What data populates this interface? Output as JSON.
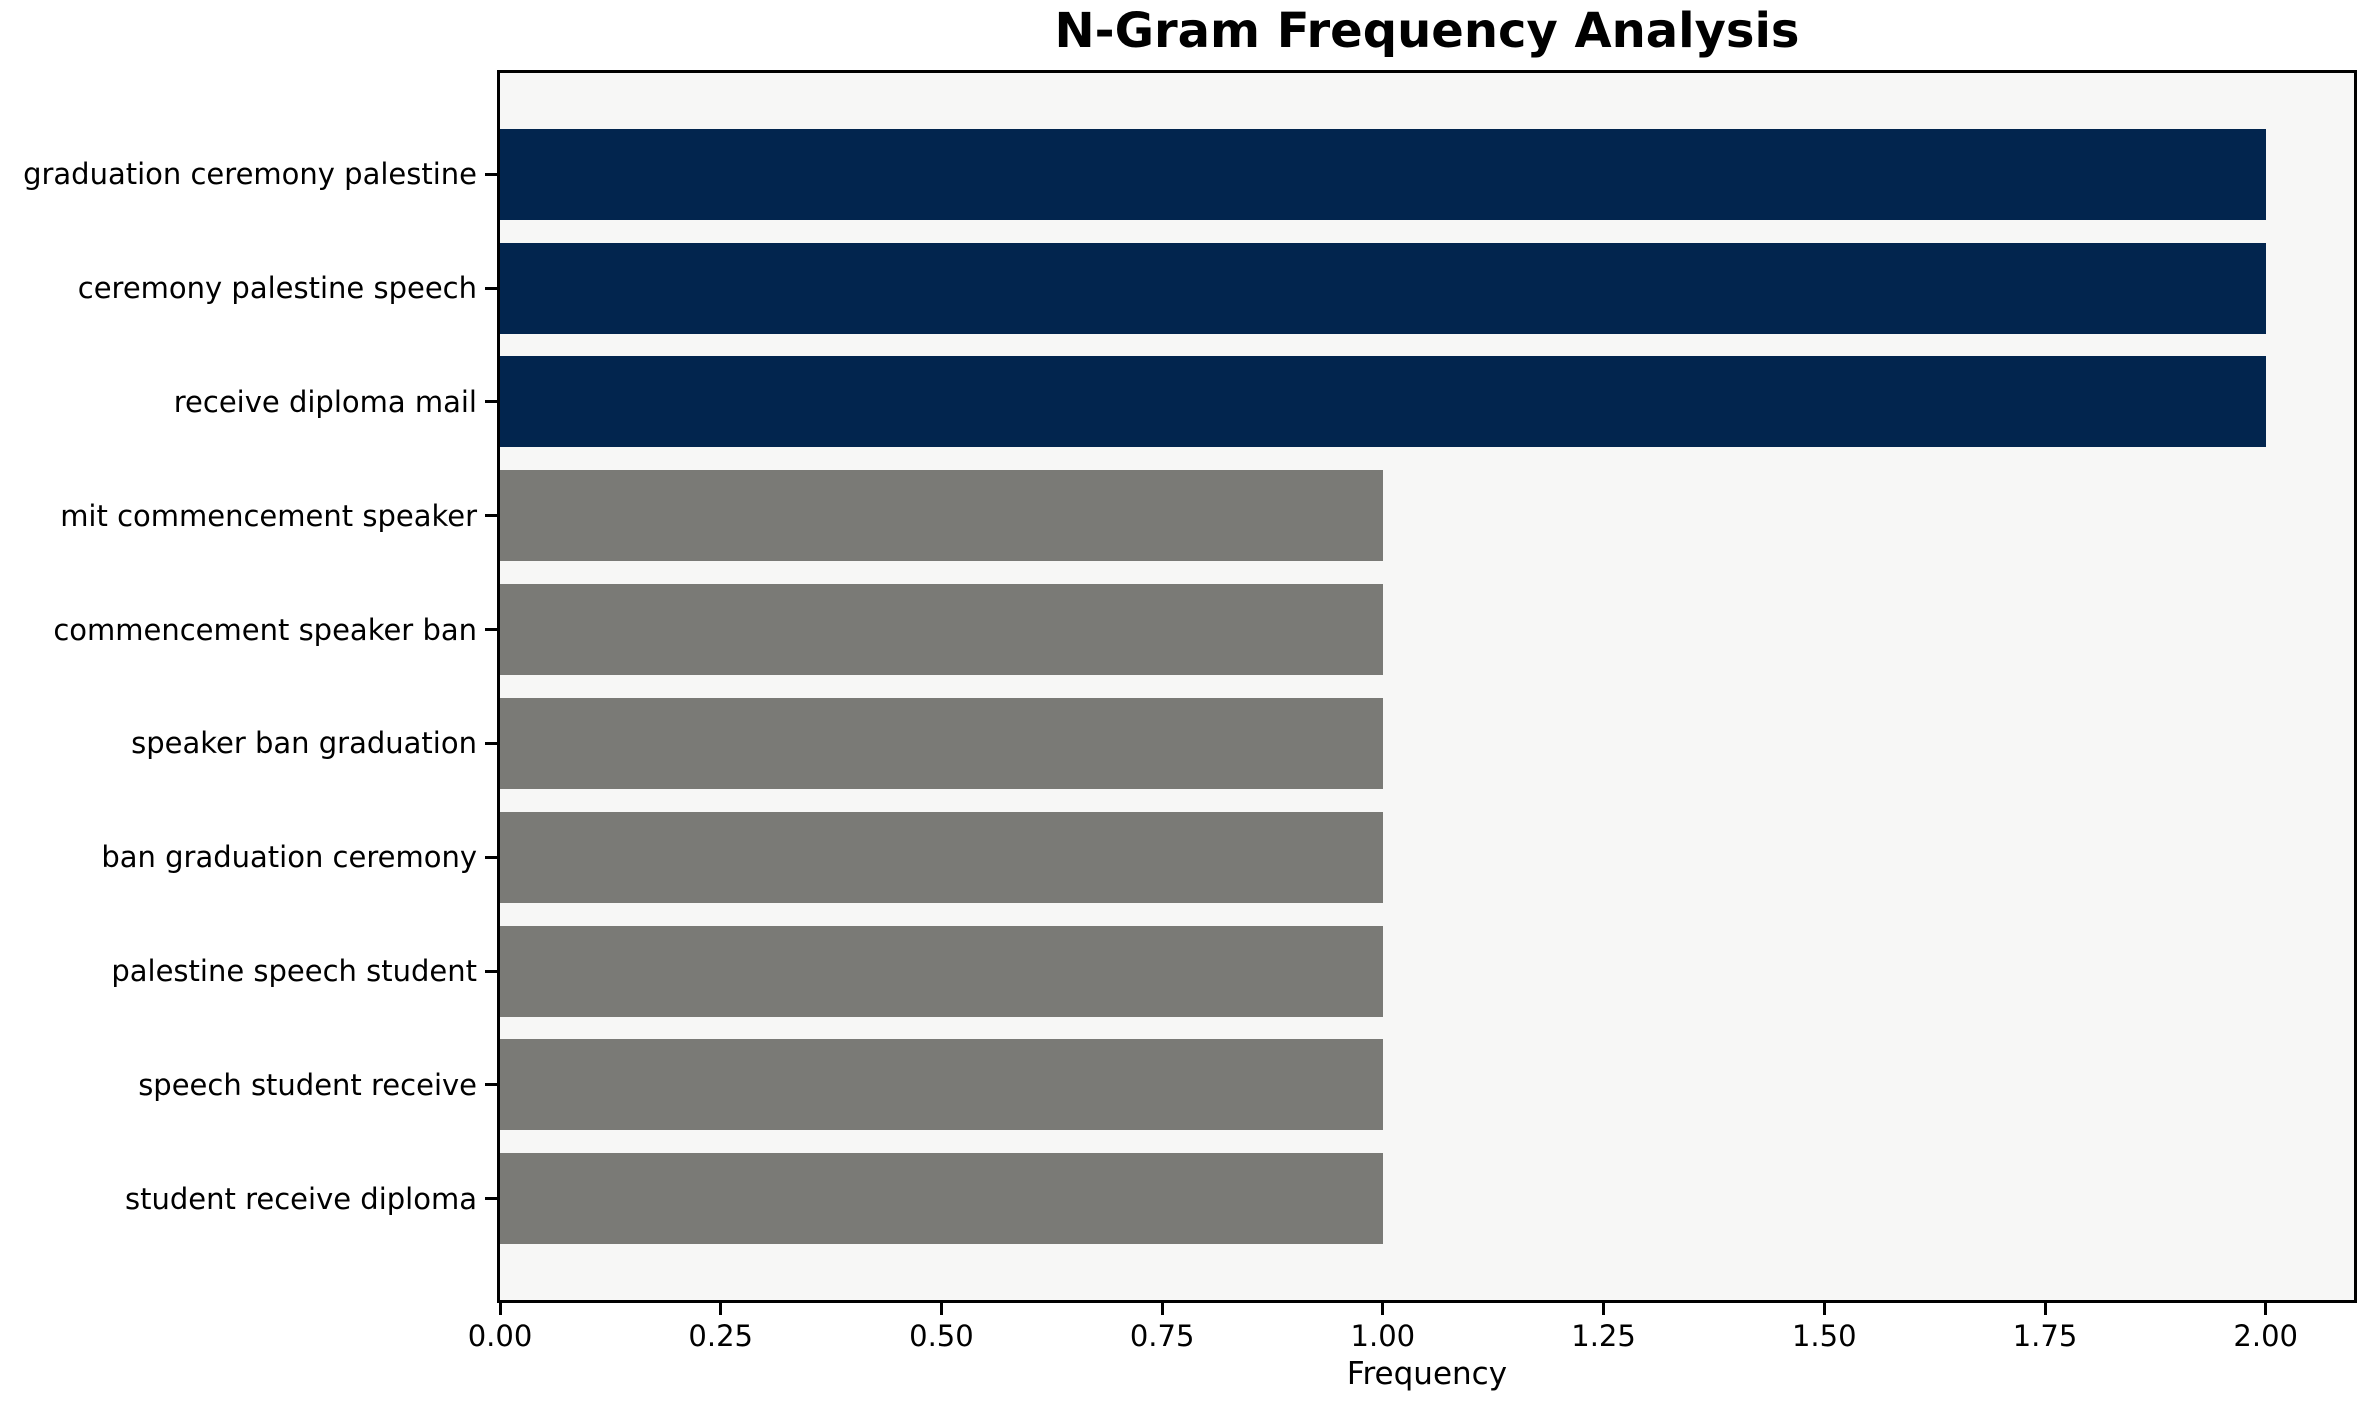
{
  "chart_data": {
    "type": "bar",
    "orientation": "horizontal",
    "title": "N-Gram Frequency Analysis",
    "xlabel": "Frequency",
    "ylabel": "",
    "categories": [
      "graduation ceremony palestine",
      "ceremony palestine speech",
      "receive diploma mail",
      "mit commencement speaker",
      "commencement speaker ban",
      "speaker ban graduation",
      "ban graduation ceremony",
      "palestine speech student",
      "speech student receive",
      "student receive diploma"
    ],
    "values": [
      2,
      2,
      2,
      1,
      1,
      1,
      1,
      1,
      1,
      1
    ],
    "bar_colors": [
      "#02254e",
      "#02254e",
      "#02254e",
      "#7a7a76",
      "#7a7a76",
      "#7a7a76",
      "#7a7a76",
      "#7a7a76",
      "#7a7a76",
      "#7a7a76"
    ],
    "highlight_color": "#02254e",
    "default_color": "#7a7a76",
    "xlim": [
      0,
      2.1
    ],
    "x_tick_values": [
      0.0,
      0.25,
      0.5,
      0.75,
      1.0,
      1.25,
      1.5,
      1.75,
      2.0
    ],
    "x_tick_labels": [
      "0.00",
      "0.25",
      "0.50",
      "0.75",
      "1.00",
      "1.25",
      "1.50",
      "1.75",
      "2.00"
    ],
    "grid": false,
    "legend": null,
    "plot_background": "#f7f7f6",
    "figure_background": "#ffffff",
    "spine_color": "#000000"
  }
}
